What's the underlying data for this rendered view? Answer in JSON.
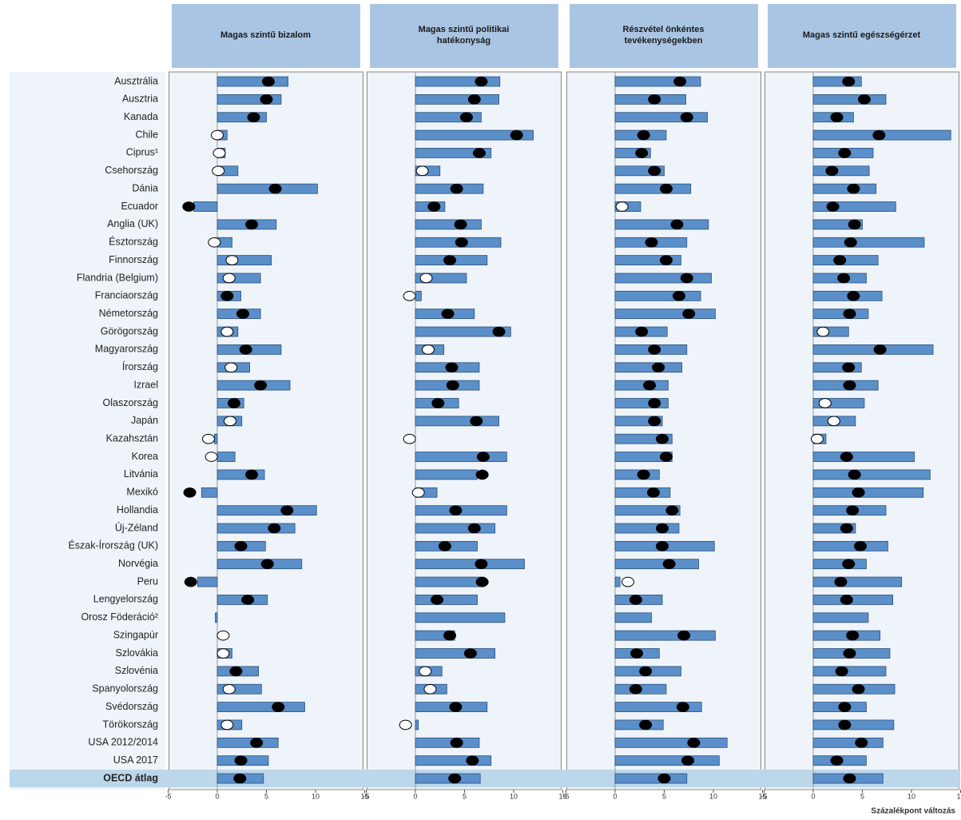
{
  "chart_data": {
    "type": "bar",
    "categories": [
      "Ausztrália",
      "Ausztria",
      "Kanada",
      "Chile",
      "Ciprus¹",
      "Csehország",
      "Dánia",
      "Ecuador",
      "Anglia (UK)",
      "Észtország",
      "Finnország",
      "Flandria (Belgium)",
      "Franciaország",
      "Németország",
      "Görögország",
      "Magyarország",
      "Írország",
      "Izrael",
      "Olaszország",
      "Japán",
      "Kazahsztán",
      "Korea",
      "Litvánia",
      "Mexikó",
      "Hollandia",
      "Új-Zéland",
      "Észak-Írország (UK)",
      "Norvégia",
      "Peru",
      "Lengyelország",
      "Orosz Föderáció²",
      "Szingapúr",
      "Szlovákia",
      "Szlovénia",
      "Spanyolország",
      "Svédország",
      "Törökország",
      "USA 2012/2014",
      "USA 2017",
      "OECD átlag"
    ],
    "highlighted": [
      5,
      15,
      29,
      32
    ],
    "highlight_color": "#e0393e",
    "bar_color": "#5b8fc9",
    "xlim": [
      -5,
      15
    ],
    "xticks": [
      -5,
      0,
      5,
      10,
      15
    ],
    "x_label": "Százalékpont változás",
    "panels": [
      {
        "title": "Magas szintű bizalom",
        "bars": [
          7.2,
          6.5,
          5.0,
          1.0,
          0.8,
          2.1,
          10.2,
          -2.4,
          6.0,
          1.5,
          5.5,
          4.4,
          2.4,
          4.4,
          2.1,
          6.5,
          3.3,
          7.4,
          2.7,
          2.5,
          -0.3,
          1.8,
          4.8,
          -1.6,
          10.1,
          7.9,
          4.9,
          8.6,
          -2.0,
          5.1,
          -0.2,
          null,
          1.5,
          4.2,
          4.5,
          8.9,
          2.5,
          6.2,
          5.2,
          4.7
        ],
        "dots": [
          5.2,
          5.0,
          3.7,
          0,
          0.2,
          0.1,
          5.9,
          -2.9,
          3.5,
          -0.3,
          1.5,
          1.2,
          1.0,
          2.6,
          1.0,
          2.9,
          1.4,
          4.4,
          1.7,
          1.3,
          -0.9,
          -0.6,
          3.5,
          -2.8,
          7.1,
          5.8,
          2.4,
          5.1,
          -2.7,
          3.1,
          null,
          0.6,
          0.6,
          1.9,
          1.2,
          6.2,
          1.0,
          4.0,
          2.4,
          2.3
        ],
        "significant": [
          true,
          true,
          true,
          false,
          false,
          false,
          true,
          true,
          true,
          false,
          false,
          false,
          true,
          true,
          false,
          true,
          false,
          true,
          true,
          false,
          false,
          false,
          true,
          true,
          true,
          true,
          true,
          true,
          true,
          true,
          null,
          false,
          false,
          true,
          false,
          true,
          false,
          true,
          true,
          true
        ]
      },
      {
        "title": "Magas szintű politikai hatékonyság",
        "bars": [
          8.6,
          8.5,
          6.7,
          12.0,
          7.7,
          2.5,
          6.9,
          3.0,
          6.7,
          8.7,
          7.3,
          5.2,
          0.6,
          6.0,
          9.7,
          2.9,
          6.5,
          6.5,
          4.4,
          8.5,
          null,
          9.3,
          6.3,
          2.2,
          9.3,
          8.1,
          6.3,
          11.1,
          7.0,
          6.3,
          9.1,
          4.0,
          8.1,
          2.7,
          3.2,
          7.3,
          0.3,
          6.5,
          7.7,
          6.6
        ],
        "dots": [
          6.7,
          6.0,
          5.2,
          10.3,
          6.5,
          0.7,
          4.2,
          1.9,
          4.6,
          4.7,
          3.5,
          1.1,
          -0.6,
          3.3,
          8.5,
          1.3,
          3.7,
          3.8,
          2.3,
          6.2,
          -0.6,
          6.9,
          6.8,
          0.3,
          4.1,
          6.0,
          3.0,
          6.7,
          6.8,
          2.2,
          null,
          3.5,
          5.6,
          1.0,
          1.5,
          4.1,
          -1.0,
          4.2,
          5.8,
          4.0
        ],
        "significant": [
          true,
          true,
          true,
          true,
          true,
          false,
          true,
          true,
          true,
          true,
          true,
          false,
          false,
          true,
          true,
          false,
          true,
          true,
          true,
          true,
          false,
          true,
          true,
          false,
          true,
          true,
          true,
          true,
          true,
          true,
          null,
          true,
          true,
          false,
          false,
          true,
          false,
          true,
          true,
          true
        ]
      },
      {
        "title": "Részvétel önkéntes tevékenységekben",
        "bars": [
          8.7,
          7.2,
          9.4,
          5.2,
          3.6,
          5.0,
          7.7,
          2.6,
          9.5,
          7.3,
          6.7,
          9.8,
          8.7,
          10.2,
          5.3,
          7.3,
          6.8,
          5.4,
          5.4,
          4.8,
          5.8,
          5.8,
          4.5,
          5.6,
          6.6,
          6.5,
          10.1,
          8.5,
          0.5,
          4.8,
          3.7,
          10.2,
          4.5,
          6.7,
          5.2,
          8.8,
          4.9,
          11.4,
          10.6,
          7.3
        ],
        "dots": [
          6.6,
          4.0,
          7.3,
          2.9,
          2.7,
          4.0,
          5.2,
          0.7,
          6.3,
          3.7,
          5.2,
          7.3,
          6.5,
          7.5,
          2.7,
          4.0,
          4.4,
          3.5,
          4.0,
          4.0,
          4.8,
          5.2,
          2.9,
          3.9,
          5.8,
          4.8,
          4.8,
          5.5,
          1.3,
          2.1,
          null,
          7.0,
          2.2,
          3.1,
          2.1,
          6.9,
          3.1,
          8.0,
          7.4,
          5.0
        ],
        "significant": [
          true,
          true,
          true,
          true,
          true,
          true,
          true,
          false,
          true,
          true,
          true,
          true,
          true,
          true,
          true,
          true,
          true,
          true,
          true,
          true,
          true,
          true,
          true,
          true,
          true,
          true,
          true,
          true,
          false,
          true,
          null,
          true,
          true,
          true,
          true,
          true,
          true,
          true,
          true,
          true
        ]
      },
      {
        "title": "Magas szintű egészségérzet",
        "bars": [
          4.9,
          7.4,
          4.1,
          14.0,
          6.1,
          5.7,
          6.4,
          8.4,
          5.0,
          11.3,
          6.6,
          5.4,
          7.0,
          5.6,
          3.6,
          12.2,
          4.9,
          6.6,
          5.2,
          4.3,
          1.3,
          10.3,
          11.9,
          11.2,
          7.4,
          4.3,
          7.6,
          5.4,
          9.0,
          8.1,
          5.6,
          6.8,
          7.8,
          7.4,
          8.3,
          5.4,
          8.2,
          7.1,
          5.4,
          7.1
        ],
        "dots": [
          3.6,
          5.2,
          2.4,
          6.7,
          3.2,
          1.9,
          4.1,
          2.0,
          4.2,
          3.8,
          2.7,
          3.1,
          4.1,
          3.7,
          1.0,
          6.8,
          3.6,
          3.7,
          1.2,
          2.1,
          0.4,
          3.4,
          4.2,
          4.6,
          4.0,
          3.4,
          4.8,
          3.6,
          2.8,
          3.4,
          null,
          4.0,
          3.7,
          2.9,
          4.6,
          3.2,
          3.2,
          4.9,
          2.4,
          3.7
        ],
        "significant": [
          true,
          true,
          true,
          true,
          true,
          true,
          true,
          true,
          true,
          true,
          true,
          true,
          true,
          true,
          false,
          true,
          true,
          true,
          false,
          false,
          false,
          true,
          true,
          true,
          true,
          true,
          true,
          true,
          true,
          true,
          null,
          true,
          true,
          true,
          true,
          true,
          true,
          true,
          true,
          true
        ]
      }
    ]
  }
}
